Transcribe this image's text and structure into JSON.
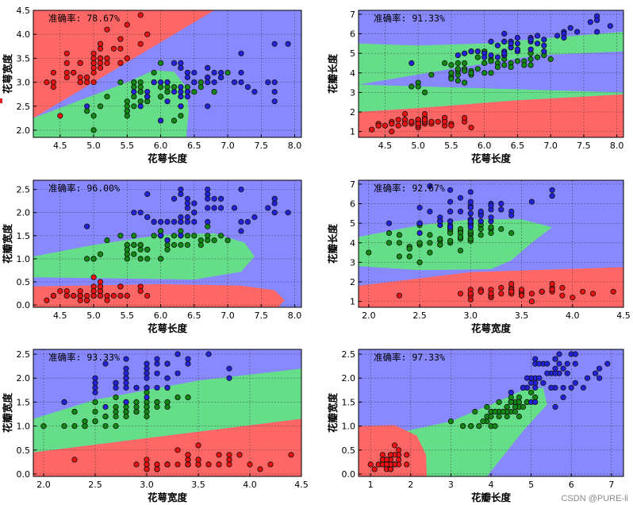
{
  "watermark": "CSDN @PURE-li",
  "colors": {
    "class0": "#ff6666",
    "class1": "#66dd88",
    "class2": "#8888ff",
    "pt0": "#ee1111",
    "pt1": "#118811",
    "pt2": "#2222dd",
    "edge": "#111111"
  },
  "chart_data": [
    {
      "type": "scatter",
      "id": "p1",
      "xlabel": "花萼长度",
      "ylabel": "花萼宽度",
      "accuracy": "准确率: 78.67%",
      "xlim": [
        4.1,
        8.1
      ],
      "ylim": [
        1.85,
        4.5
      ],
      "xticks": [
        "4.5",
        "5.0",
        "5.5",
        "6.0",
        "6.5",
        "7.0",
        "7.5",
        "8.0"
      ],
      "xtickvals": [
        4.5,
        5,
        5.5,
        6,
        6.5,
        7,
        7.5,
        8
      ],
      "yticks": [
        "2.0",
        "2.5",
        "3.0",
        "3.5",
        "4.0",
        "4.5"
      ],
      "ytickvals": [
        2,
        2.5,
        3,
        3.5,
        4,
        4.5
      ]
    },
    {
      "type": "scatter",
      "id": "p2",
      "xlabel": "花萼长度",
      "ylabel": "花瓣长度",
      "accuracy": "准确率: 91.33%",
      "xlim": [
        4.1,
        8.1
      ],
      "ylim": [
        0.7,
        7.2
      ],
      "xticks": [
        "4.5",
        "5.0",
        "5.5",
        "6.0",
        "6.5",
        "7.0",
        "7.5",
        "8.0"
      ],
      "xtickvals": [
        4.5,
        5,
        5.5,
        6,
        6.5,
        7,
        7.5,
        8
      ],
      "yticks": [
        "1",
        "2",
        "3",
        "4",
        "5",
        "6",
        "7"
      ],
      "ytickvals": [
        1,
        2,
        3,
        4,
        5,
        6,
        7
      ]
    },
    {
      "type": "scatter",
      "id": "p3",
      "xlabel": "花萼长度",
      "ylabel": "花瓣宽度",
      "accuracy": "准确率: 96.00%",
      "xlim": [
        4.1,
        8.1
      ],
      "ylim": [
        -0.05,
        2.7
      ],
      "xticks": [
        "4.5",
        "5.0",
        "5.5",
        "6.0",
        "6.5",
        "7.0",
        "7.5",
        "8.0"
      ],
      "xtickvals": [
        4.5,
        5,
        5.5,
        6,
        6.5,
        7,
        7.5,
        8
      ],
      "yticks": [
        "0.0",
        "0.5",
        "1.0",
        "1.5",
        "2.0",
        "2.5"
      ],
      "ytickvals": [
        0,
        0.5,
        1,
        1.5,
        2,
        2.5
      ]
    },
    {
      "type": "scatter",
      "id": "p4",
      "xlabel": "花萼宽度",
      "ylabel": "花瓣长度",
      "accuracy": "准确率: 92.67%",
      "xlim": [
        1.9,
        4.5
      ],
      "ylim": [
        0.7,
        7.2
      ],
      "xticks": [
        "2.0",
        "2.5",
        "3.0",
        "3.5",
        "4.0",
        "4.5"
      ],
      "xtickvals": [
        2,
        2.5,
        3,
        3.5,
        4,
        4.5
      ],
      "yticks": [
        "1",
        "2",
        "3",
        "4",
        "5",
        "6",
        "7"
      ],
      "ytickvals": [
        1,
        2,
        3,
        4,
        5,
        6,
        7
      ]
    },
    {
      "type": "scatter",
      "id": "p5",
      "xlabel": "花萼宽度",
      "ylabel": "花瓣宽度",
      "accuracy": "准确率: 93.33%",
      "xlim": [
        1.9,
        4.5
      ],
      "ylim": [
        -0.05,
        2.6
      ],
      "xticks": [
        "2.0",
        "2.5",
        "3.0",
        "3.5",
        "4.0",
        "4.5"
      ],
      "xtickvals": [
        2,
        2.5,
        3,
        3.5,
        4,
        4.5
      ],
      "yticks": [
        "0.0",
        "0.5",
        "1.0",
        "1.5",
        "2.0",
        "2.5"
      ],
      "ytickvals": [
        0,
        0.5,
        1,
        1.5,
        2,
        2.5
      ]
    },
    {
      "type": "scatter",
      "id": "p6",
      "xlabel": "花瓣长度",
      "ylabel": "花瓣宽度",
      "accuracy": "准确率: 97.33%",
      "xlim": [
        0.7,
        7.3
      ],
      "ylim": [
        -0.05,
        2.6
      ],
      "xticks": [
        "1",
        "2",
        "3",
        "4",
        "5",
        "6",
        "7"
      ],
      "xtickvals": [
        1,
        2,
        3,
        4,
        5,
        6,
        7
      ],
      "yticks": [
        "0.0",
        "0.5",
        "1.0",
        "1.5",
        "2.0",
        "2.5"
      ],
      "ytickvals": [
        0,
        0.5,
        1,
        1.5,
        2,
        2.5
      ]
    }
  ],
  "iris": {
    "setosa": [
      [
        5.1,
        3.5,
        1.4,
        0.2
      ],
      [
        4.9,
        3.0,
        1.4,
        0.2
      ],
      [
        4.7,
        3.2,
        1.3,
        0.2
      ],
      [
        4.6,
        3.1,
        1.5,
        0.2
      ],
      [
        5.0,
        3.6,
        1.4,
        0.2
      ],
      [
        5.4,
        3.9,
        1.7,
        0.4
      ],
      [
        4.6,
        3.4,
        1.4,
        0.3
      ],
      [
        5.0,
        3.4,
        1.5,
        0.2
      ],
      [
        4.4,
        2.9,
        1.4,
        0.2
      ],
      [
        4.9,
        3.1,
        1.5,
        0.1
      ],
      [
        5.4,
        3.7,
        1.5,
        0.2
      ],
      [
        4.8,
        3.4,
        1.6,
        0.2
      ],
      [
        4.8,
        3.0,
        1.4,
        0.1
      ],
      [
        4.3,
        3.0,
        1.1,
        0.1
      ],
      [
        5.8,
        4.0,
        1.2,
        0.2
      ],
      [
        5.7,
        4.4,
        1.5,
        0.4
      ],
      [
        5.4,
        3.9,
        1.3,
        0.4
      ],
      [
        5.1,
        3.5,
        1.4,
        0.3
      ],
      [
        5.7,
        3.8,
        1.7,
        0.3
      ],
      [
        5.1,
        3.8,
        1.5,
        0.3
      ],
      [
        5.4,
        3.4,
        1.7,
        0.2
      ],
      [
        5.1,
        3.7,
        1.5,
        0.4
      ],
      [
        4.6,
        3.6,
        1.0,
        0.2
      ],
      [
        5.1,
        3.3,
        1.7,
        0.5
      ],
      [
        4.8,
        3.4,
        1.9,
        0.2
      ],
      [
        5.0,
        3.0,
        1.6,
        0.2
      ],
      [
        5.0,
        3.4,
        1.6,
        0.4
      ],
      [
        5.2,
        3.5,
        1.5,
        0.2
      ],
      [
        5.2,
        3.4,
        1.4,
        0.2
      ],
      [
        4.7,
        3.2,
        1.6,
        0.2
      ],
      [
        4.8,
        3.1,
        1.6,
        0.2
      ],
      [
        5.4,
        3.4,
        1.5,
        0.4
      ],
      [
        5.2,
        4.1,
        1.5,
        0.1
      ],
      [
        5.5,
        4.2,
        1.4,
        0.2
      ],
      [
        4.9,
        3.1,
        1.5,
        0.1
      ],
      [
        5.0,
        3.2,
        1.2,
        0.2
      ],
      [
        5.5,
        3.5,
        1.3,
        0.2
      ],
      [
        4.9,
        3.1,
        1.5,
        0.1
      ],
      [
        4.4,
        3.0,
        1.3,
        0.2
      ],
      [
        5.1,
        3.4,
        1.5,
        0.2
      ],
      [
        5.0,
        3.5,
        1.3,
        0.3
      ],
      [
        4.5,
        2.3,
        1.3,
        0.3
      ],
      [
        4.4,
        3.2,
        1.3,
        0.2
      ],
      [
        5.0,
        3.5,
        1.6,
        0.6
      ],
      [
        5.1,
        3.8,
        1.9,
        0.4
      ],
      [
        4.8,
        3.0,
        1.4,
        0.3
      ],
      [
        5.1,
        3.8,
        1.6,
        0.2
      ],
      [
        4.6,
        3.2,
        1.4,
        0.2
      ],
      [
        5.3,
        3.7,
        1.5,
        0.2
      ],
      [
        5.0,
        3.3,
        1.4,
        0.2
      ]
    ],
    "versicolor": [
      [
        7.0,
        3.2,
        4.7,
        1.4
      ],
      [
        6.4,
        3.2,
        4.5,
        1.5
      ],
      [
        6.9,
        3.1,
        4.9,
        1.5
      ],
      [
        5.5,
        2.3,
        4.0,
        1.3
      ],
      [
        6.5,
        2.8,
        4.6,
        1.5
      ],
      [
        5.7,
        2.8,
        4.5,
        1.3
      ],
      [
        6.3,
        3.3,
        4.7,
        1.6
      ],
      [
        4.9,
        2.4,
        3.3,
        1.0
      ],
      [
        6.6,
        2.9,
        4.6,
        1.3
      ],
      [
        5.2,
        2.7,
        3.9,
        1.4
      ],
      [
        5.0,
        2.0,
        3.5,
        1.0
      ],
      [
        5.9,
        3.0,
        4.2,
        1.5
      ],
      [
        6.0,
        2.2,
        4.0,
        1.0
      ],
      [
        6.1,
        2.9,
        4.7,
        1.4
      ],
      [
        5.6,
        2.9,
        3.6,
        1.3
      ],
      [
        6.7,
        3.1,
        4.4,
        1.4
      ],
      [
        5.6,
        3.0,
        4.5,
        1.5
      ],
      [
        5.8,
        2.7,
        4.1,
        1.0
      ],
      [
        6.2,
        2.2,
        4.5,
        1.5
      ],
      [
        5.6,
        2.5,
        3.9,
        1.1
      ],
      [
        5.9,
        3.2,
        4.8,
        1.8
      ],
      [
        6.1,
        2.8,
        4.0,
        1.3
      ],
      [
        6.3,
        2.5,
        4.9,
        1.5
      ],
      [
        6.1,
        2.8,
        4.7,
        1.2
      ],
      [
        6.4,
        2.9,
        4.3,
        1.3
      ],
      [
        6.6,
        3.0,
        4.4,
        1.4
      ],
      [
        6.8,
        2.8,
        4.8,
        1.4
      ],
      [
        6.7,
        3.0,
        5.0,
        1.7
      ],
      [
        6.0,
        2.9,
        4.5,
        1.5
      ],
      [
        5.7,
        2.6,
        3.5,
        1.0
      ],
      [
        5.5,
        2.4,
        3.8,
        1.1
      ],
      [
        5.5,
        2.4,
        3.7,
        1.0
      ],
      [
        5.8,
        2.7,
        3.9,
        1.2
      ],
      [
        6.0,
        2.7,
        5.1,
        1.6
      ],
      [
        5.4,
        3.0,
        4.5,
        1.5
      ],
      [
        6.0,
        3.4,
        4.5,
        1.6
      ],
      [
        6.7,
        3.1,
        4.7,
        1.5
      ],
      [
        6.3,
        2.3,
        4.4,
        1.3
      ],
      [
        5.6,
        3.0,
        4.1,
        1.3
      ],
      [
        5.5,
        2.5,
        4.0,
        1.3
      ],
      [
        5.5,
        2.6,
        4.4,
        1.2
      ],
      [
        6.1,
        3.0,
        4.6,
        1.4
      ],
      [
        5.8,
        2.6,
        4.0,
        1.2
      ],
      [
        5.0,
        2.3,
        3.3,
        1.0
      ],
      [
        5.6,
        2.7,
        4.2,
        1.3
      ],
      [
        5.7,
        3.0,
        4.2,
        1.2
      ],
      [
        5.7,
        2.9,
        4.2,
        1.3
      ],
      [
        6.2,
        2.9,
        4.3,
        1.3
      ],
      [
        5.1,
        2.5,
        3.0,
        1.1
      ],
      [
        5.7,
        2.8,
        4.1,
        1.3
      ]
    ],
    "virginica": [
      [
        6.3,
        3.3,
        6.0,
        2.5
      ],
      [
        5.8,
        2.7,
        5.1,
        1.9
      ],
      [
        7.1,
        3.0,
        5.9,
        2.1
      ],
      [
        6.3,
        2.9,
        5.6,
        1.8
      ],
      [
        6.5,
        3.0,
        5.8,
        2.2
      ],
      [
        7.6,
        3.0,
        6.6,
        2.1
      ],
      [
        4.9,
        2.5,
        4.5,
        1.7
      ],
      [
        7.3,
        2.9,
        6.3,
        1.8
      ],
      [
        6.7,
        2.5,
        5.8,
        1.8
      ],
      [
        7.2,
        3.6,
        6.1,
        2.5
      ],
      [
        6.5,
        3.2,
        5.1,
        2.0
      ],
      [
        6.4,
        2.7,
        5.3,
        1.9
      ],
      [
        6.8,
        3.0,
        5.5,
        2.1
      ],
      [
        5.7,
        2.5,
        5.0,
        2.0
      ],
      [
        5.8,
        2.8,
        5.1,
        2.4
      ],
      [
        6.4,
        3.2,
        5.3,
        2.3
      ],
      [
        6.5,
        3.0,
        5.5,
        1.8
      ],
      [
        7.7,
        3.8,
        6.7,
        2.2
      ],
      [
        7.7,
        2.6,
        6.9,
        2.3
      ],
      [
        6.0,
        2.2,
        5.0,
        1.5
      ],
      [
        6.9,
        3.2,
        5.7,
        2.3
      ],
      [
        5.6,
        2.8,
        4.9,
        2.0
      ],
      [
        7.7,
        2.8,
        6.7,
        2.0
      ],
      [
        6.3,
        2.7,
        4.9,
        1.8
      ],
      [
        6.7,
        3.3,
        5.7,
        2.1
      ],
      [
        7.2,
        3.2,
        6.0,
        1.8
      ],
      [
        6.2,
        2.8,
        4.8,
        1.8
      ],
      [
        6.1,
        3.0,
        4.9,
        1.8
      ],
      [
        6.4,
        2.8,
        5.6,
        2.1
      ],
      [
        7.2,
        3.0,
        5.8,
        1.6
      ],
      [
        7.4,
        2.8,
        6.1,
        1.9
      ],
      [
        7.9,
        3.8,
        6.4,
        2.0
      ],
      [
        6.4,
        2.8,
        5.6,
        2.2
      ],
      [
        6.3,
        2.8,
        5.1,
        1.5
      ],
      [
        6.1,
        2.6,
        5.6,
        1.4
      ],
      [
        7.7,
        3.0,
        6.1,
        2.3
      ],
      [
        6.3,
        3.4,
        5.6,
        2.4
      ],
      [
        6.4,
        3.1,
        5.5,
        1.8
      ],
      [
        6.0,
        3.0,
        4.8,
        1.8
      ],
      [
        6.9,
        3.1,
        5.4,
        2.1
      ],
      [
        6.7,
        3.1,
        5.6,
        2.4
      ],
      [
        6.9,
        3.1,
        5.1,
        2.3
      ],
      [
        5.8,
        2.7,
        5.1,
        1.9
      ],
      [
        6.8,
        3.2,
        5.9,
        2.3
      ],
      [
        6.7,
        3.3,
        5.7,
        2.5
      ],
      [
        6.7,
        3.0,
        5.2,
        2.3
      ],
      [
        6.3,
        2.5,
        5.0,
        1.9
      ],
      [
        6.5,
        3.0,
        5.2,
        2.0
      ],
      [
        6.2,
        3.4,
        5.4,
        2.3
      ],
      [
        5.9,
        3.0,
        5.1,
        1.8
      ]
    ]
  },
  "panel_features": [
    [
      0,
      1
    ],
    [
      0,
      2
    ],
    [
      0,
      3
    ],
    [
      1,
      2
    ],
    [
      1,
      3
    ],
    [
      2,
      3
    ]
  ]
}
